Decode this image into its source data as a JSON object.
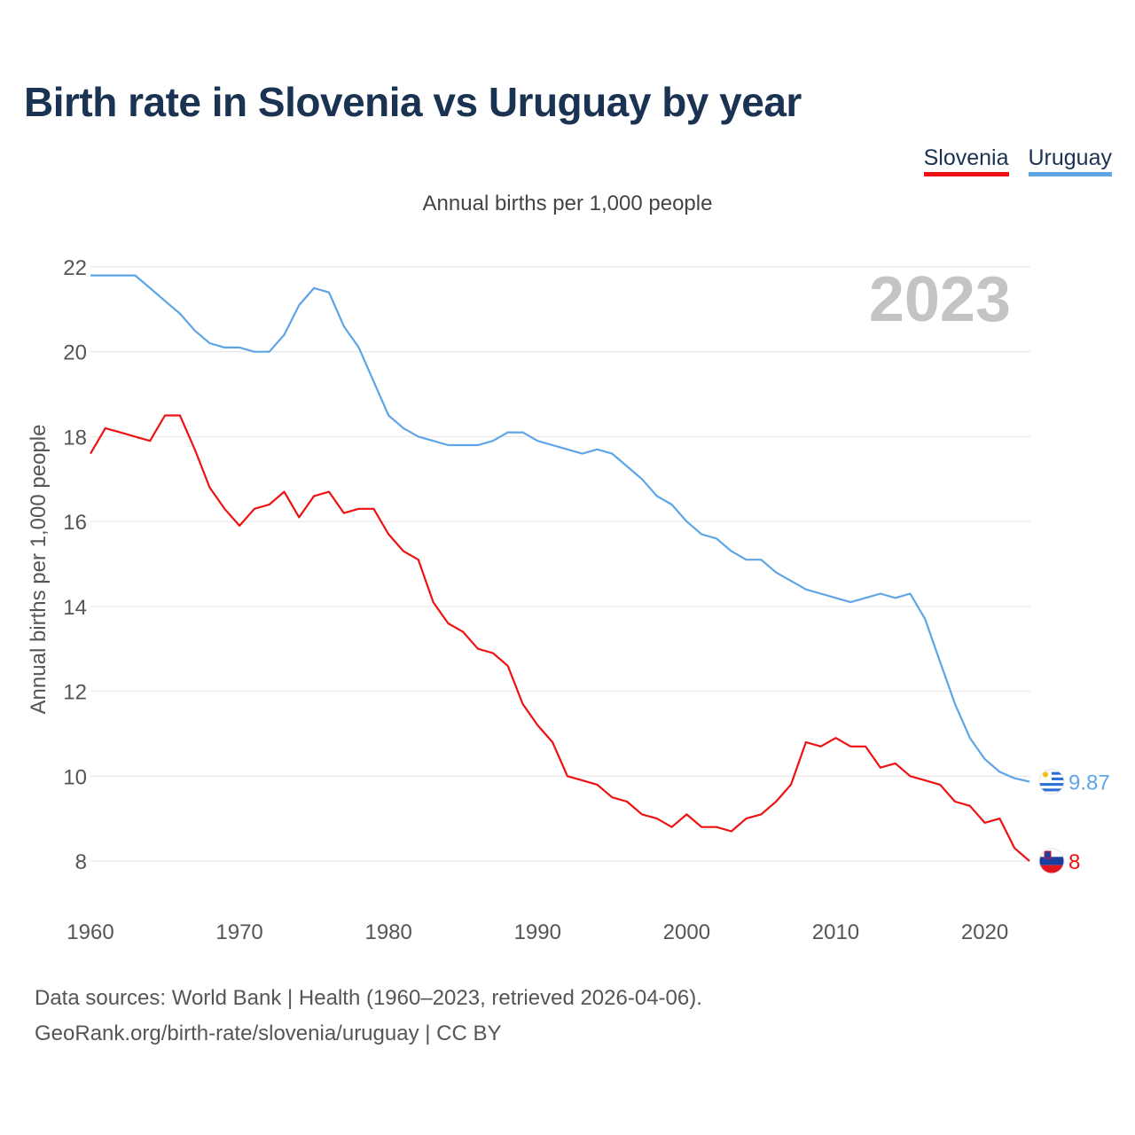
{
  "title": "Birth rate in Slovenia vs Uruguay by year",
  "legend": [
    {
      "label": "Slovenia",
      "color": "#ee1111"
    },
    {
      "label": "Uruguay",
      "color": "#5ea5e6"
    }
  ],
  "subtitle": "Annual births per 1,000 people",
  "source": {
    "line1": "Data sources: World Bank | Health (1960–2023, retrieved 2026-04-06).",
    "line2": "GeoRank.org/birth-rate/slovenia/uruguay | CC BY"
  },
  "chart_data": {
    "type": "line",
    "title": "Birth rate in Slovenia vs Uruguay by year",
    "xlabel": "",
    "ylabel": "Annual births per 1,000 people",
    "xlim": [
      1960,
      2023
    ],
    "ylim": [
      7,
      22
    ],
    "x_ticks": [
      "1960",
      "1970",
      "1980",
      "1990",
      "2000",
      "2010",
      "2020"
    ],
    "y_ticks": [
      "8",
      "10",
      "12",
      "14",
      "16",
      "18",
      "20",
      "22"
    ],
    "grid": true,
    "year_label": "2023",
    "x": [
      1960,
      1961,
      1962,
      1963,
      1964,
      1965,
      1966,
      1967,
      1968,
      1969,
      1970,
      1971,
      1972,
      1973,
      1974,
      1975,
      1976,
      1977,
      1978,
      1979,
      1980,
      1981,
      1982,
      1983,
      1984,
      1985,
      1986,
      1987,
      1988,
      1989,
      1990,
      1991,
      1992,
      1993,
      1994,
      1995,
      1996,
      1997,
      1998,
      1999,
      2000,
      2001,
      2002,
      2003,
      2004,
      2005,
      2006,
      2007,
      2008,
      2009,
      2010,
      2011,
      2012,
      2013,
      2014,
      2015,
      2016,
      2017,
      2018,
      2019,
      2020,
      2021,
      2022,
      2023
    ],
    "series": [
      {
        "name": "Slovenia",
        "color": "#ee1111",
        "end_label": "8",
        "flag": "slovenia-flag-icon",
        "values": [
          17.6,
          18.2,
          18.1,
          18.0,
          17.9,
          18.5,
          18.5,
          17.7,
          16.8,
          16.3,
          15.9,
          16.3,
          16.4,
          16.7,
          16.1,
          16.6,
          16.7,
          16.2,
          16.3,
          16.3,
          15.7,
          15.3,
          15.1,
          14.1,
          13.6,
          13.4,
          13.0,
          12.9,
          12.6,
          11.7,
          11.2,
          10.8,
          10.0,
          9.9,
          9.8,
          9.5,
          9.4,
          9.1,
          9.0,
          8.8,
          9.1,
          8.8,
          8.8,
          8.7,
          9.0,
          9.1,
          9.4,
          9.8,
          10.8,
          10.7,
          10.9,
          10.7,
          10.7,
          10.2,
          10.3,
          10.0,
          9.9,
          9.8,
          9.4,
          9.3,
          8.9,
          9.0,
          8.3,
          8.0
        ]
      },
      {
        "name": "Uruguay",
        "color": "#5ea5e6",
        "end_label": "9.87",
        "flag": "uruguay-flag-icon",
        "values": [
          21.8,
          21.8,
          21.8,
          21.8,
          21.5,
          21.2,
          20.9,
          20.5,
          20.2,
          20.1,
          20.1,
          20.0,
          20.0,
          20.4,
          21.1,
          21.5,
          21.4,
          20.6,
          20.1,
          19.3,
          18.5,
          18.2,
          18.0,
          17.9,
          17.8,
          17.8,
          17.8,
          17.9,
          18.1,
          18.1,
          17.9,
          17.8,
          17.7,
          17.6,
          17.7,
          17.6,
          17.3,
          17.0,
          16.6,
          16.4,
          16.0,
          15.7,
          15.6,
          15.3,
          15.1,
          15.1,
          14.8,
          14.6,
          14.4,
          14.3,
          14.2,
          14.1,
          14.2,
          14.3,
          14.2,
          14.3,
          13.7,
          12.7,
          11.7,
          10.9,
          10.4,
          10.1,
          9.95,
          9.87
        ]
      }
    ]
  }
}
